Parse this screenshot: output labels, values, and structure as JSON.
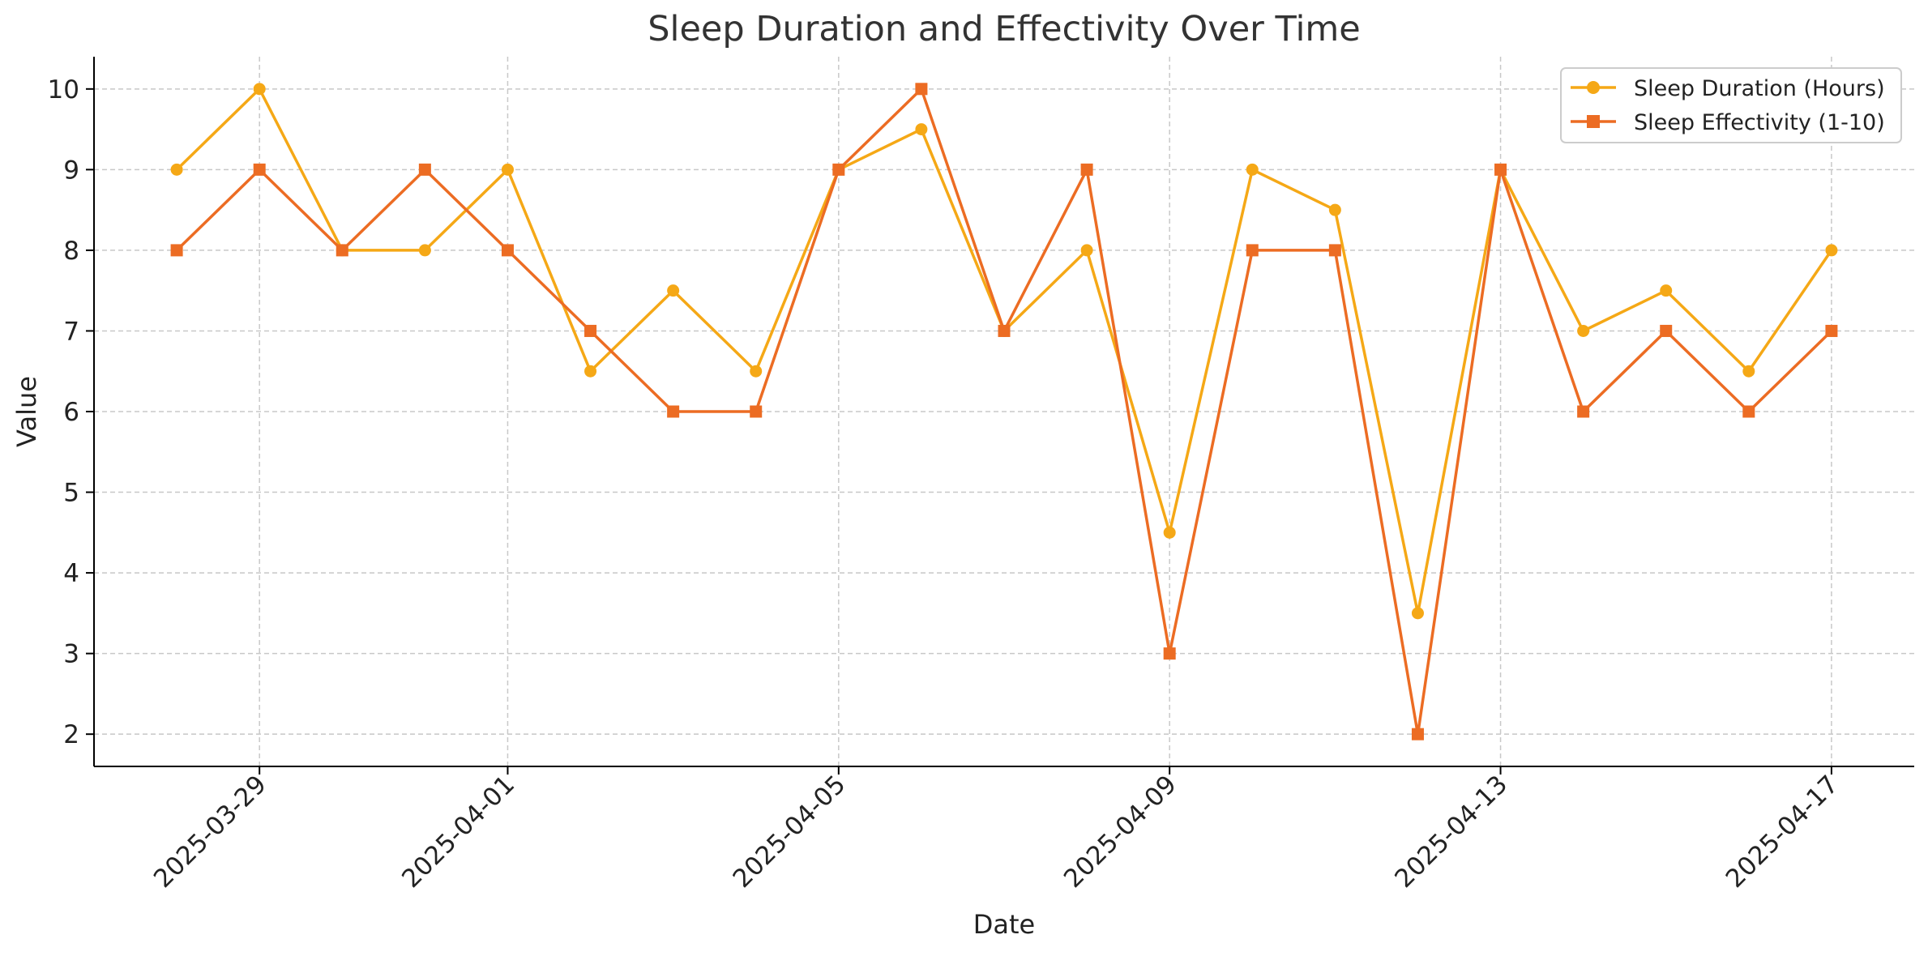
{
  "chart_data": {
    "type": "line",
    "title": "Sleep Duration and Effectivity Over Time",
    "xlabel": "Date",
    "ylabel": "Value",
    "x": [
      "2025-03-28",
      "2025-03-29",
      "2025-03-30",
      "2025-03-31",
      "2025-04-01",
      "2025-04-02",
      "2025-04-03",
      "2025-04-04",
      "2025-04-05",
      "2025-04-06",
      "2025-04-07",
      "2025-04-08",
      "2025-04-09",
      "2025-04-10",
      "2025-04-11",
      "2025-04-12",
      "2025-04-13",
      "2025-04-14",
      "2025-04-15",
      "2025-04-16",
      "2025-04-17"
    ],
    "x_ticks": [
      "2025-03-29",
      "2025-04-01",
      "2025-04-05",
      "2025-04-09",
      "2025-04-13",
      "2025-04-17"
    ],
    "y_ticks": [
      2,
      3,
      4,
      5,
      6,
      7,
      8,
      9,
      10
    ],
    "ylim": [
      1.6,
      10.4
    ],
    "xlim": [
      "2025-03-27",
      "2025-04-18"
    ],
    "grid": true,
    "legend_position": "top-right",
    "series": [
      {
        "name": "Sleep Duration (Hours)",
        "color": "#f5a816",
        "marker": "circle",
        "values": [
          9,
          10,
          8,
          8,
          9,
          6.5,
          7.5,
          6.5,
          9,
          9.5,
          7,
          8,
          4.5,
          9,
          8.5,
          3.5,
          9,
          7,
          7.5,
          6.5,
          8
        ]
      },
      {
        "name": "Sleep Effectivity (1-10)",
        "color": "#ec6c23",
        "marker": "square",
        "values": [
          8,
          9,
          8,
          9,
          8,
          7,
          6,
          6,
          9,
          10,
          7,
          9,
          3,
          8,
          8,
          2,
          9,
          6,
          7,
          6,
          7
        ]
      }
    ]
  }
}
